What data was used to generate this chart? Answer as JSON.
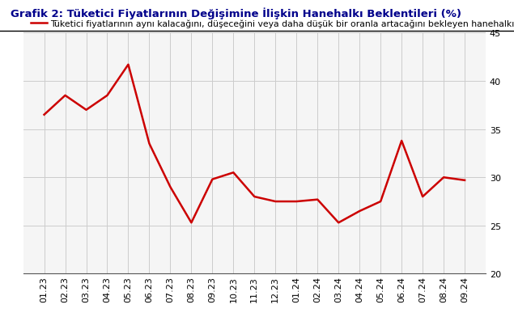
{
  "title": "Grafik 2: Tüketici Fiyatlarının Değişimine İlişkin Hanehalkı Beklentileri (%)",
  "legend_label": "Tüketici fiyatlarının aynı kalacağını, düşeceğini veya daha düşük bir oranla artacağını bekleyen hanehalkı oranı",
  "x_labels": [
    "01.23",
    "02.23",
    "03.23",
    "04.23",
    "05.23",
    "06.23",
    "07.23",
    "08.23",
    "09.23",
    "10.23",
    "11.23",
    "12.23",
    "01.24",
    "02.24",
    "03.24",
    "04.24",
    "05.24",
    "06.24",
    "07.24",
    "08.24",
    "09.24"
  ],
  "y_values": [
    36.5,
    38.5,
    37.0,
    38.5,
    41.7,
    33.5,
    29.0,
    25.3,
    29.8,
    30.5,
    28.0,
    27.5,
    27.5,
    27.7,
    25.3,
    26.5,
    27.5,
    33.8,
    28.0,
    30.0,
    29.7
  ],
  "line_color": "#cc0000",
  "ylim": [
    20,
    45
  ],
  "yticks": [
    20,
    25,
    30,
    35,
    40,
    45
  ],
  "background_color": "#ffffff",
  "plot_bg_color": "#f5f5f5",
  "grid_color": "#cccccc",
  "title_fontsize": 9.5,
  "legend_fontsize": 7.8,
  "tick_fontsize": 8.0,
  "line_width": 1.8,
  "title_color": "#00008b"
}
